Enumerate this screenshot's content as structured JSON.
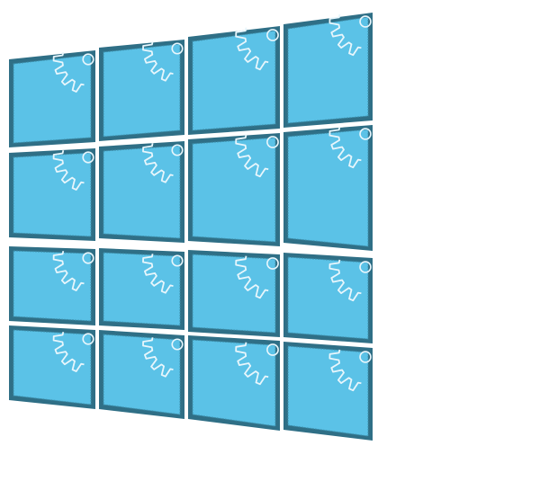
{
  "colors": {
    "background": "#ffffff",
    "tile_border": "#2f6f86",
    "tile_fill": "#5bc2e7",
    "gear_outline": "#e8f6fc"
  },
  "icons": {
    "tile_icon": "gear-icon"
  },
  "grid": {
    "rows": 4,
    "columns": 4
  }
}
